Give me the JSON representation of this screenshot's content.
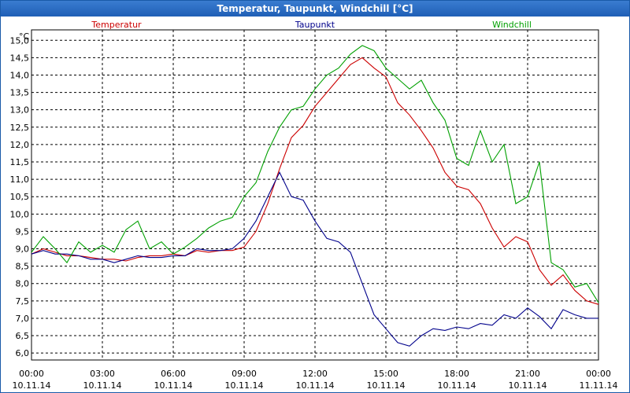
{
  "window": {
    "title": "Temperatur, Taupunkt, Windchill [°C]"
  },
  "chart_data": {
    "type": "line",
    "title": "Temperatur, Taupunkt, Windchill [°C]",
    "ylabel": "°C",
    "ylim": [
      5.8,
      15.3
    ],
    "xlim": [
      0,
      24
    ],
    "y_ticks": [
      "15,0",
      "14,5",
      "14,0",
      "13,5",
      "13,0",
      "12,5",
      "12,0",
      "11,5",
      "11,0",
      "10,5",
      "10,0",
      "9,5",
      "9,0",
      "8,5",
      "8,0",
      "7,5",
      "7,0",
      "6,5",
      "6,0"
    ],
    "x_ticks": [
      {
        "time": "00:00",
        "date": "10.11.14"
      },
      {
        "time": "03:00",
        "date": "10.11.14"
      },
      {
        "time": "06:00",
        "date": "10.11.14"
      },
      {
        "time": "09:00",
        "date": "10.11.14"
      },
      {
        "time": "12:00",
        "date": "10.11.14"
      },
      {
        "time": "15:00",
        "date": "10.11.14"
      },
      {
        "time": "18:00",
        "date": "10.11.14"
      },
      {
        "time": "21:00",
        "date": "10.11.14"
      },
      {
        "time": "00:00",
        "date": "11.11.14"
      }
    ],
    "grid": true,
    "legend_position": "top",
    "series": [
      {
        "name": "Temperatur",
        "color": "#cc0000",
        "x": [
          0,
          0.5,
          1,
          1.5,
          2,
          2.5,
          3,
          3.5,
          4,
          4.5,
          5,
          5.5,
          6,
          6.5,
          7,
          7.5,
          8,
          8.5,
          9,
          9.5,
          10,
          10.5,
          11,
          11.5,
          12,
          12.5,
          13,
          13.5,
          14,
          14.5,
          15,
          15.5,
          16,
          16.5,
          17,
          17.5,
          18,
          18.5,
          19,
          19.5,
          20,
          20.5,
          21,
          21.5,
          22,
          22.5,
          23,
          23.5,
          24
        ],
        "values": [
          8.85,
          9.0,
          8.9,
          8.8,
          8.8,
          8.75,
          8.7,
          8.7,
          8.65,
          8.75,
          8.8,
          8.8,
          8.85,
          8.8,
          8.95,
          8.9,
          8.95,
          8.95,
          9.05,
          9.5,
          10.3,
          11.3,
          12.2,
          12.55,
          13.1,
          13.5,
          13.9,
          14.3,
          14.5,
          14.2,
          13.95,
          13.2,
          12.85,
          12.4,
          11.9,
          11.2,
          10.8,
          10.7,
          10.3,
          9.6,
          9.05,
          9.35,
          9.2,
          8.4,
          7.95,
          8.25,
          7.8,
          7.5,
          7.4
        ]
      },
      {
        "name": "Taupunkt",
        "color": "#00008b",
        "x": [
          0,
          0.5,
          1,
          1.5,
          2,
          2.5,
          3,
          3.5,
          4,
          4.5,
          5,
          5.5,
          6,
          6.5,
          7,
          7.5,
          8,
          8.5,
          9,
          9.5,
          10,
          10.5,
          11,
          11.5,
          12,
          12.5,
          13,
          13.5,
          14,
          14.5,
          15,
          15.5,
          16,
          16.5,
          17,
          17.5,
          18,
          18.5,
          19,
          19.5,
          20,
          20.5,
          21,
          21.5,
          22,
          22.5,
          23,
          23.5,
          24
        ],
        "values": [
          8.85,
          8.95,
          8.85,
          8.85,
          8.8,
          8.7,
          8.7,
          8.6,
          8.7,
          8.8,
          8.75,
          8.75,
          8.8,
          8.8,
          9.0,
          8.95,
          8.95,
          9.0,
          9.3,
          9.8,
          10.5,
          11.2,
          10.5,
          10.4,
          9.8,
          9.3,
          9.2,
          8.9,
          8.0,
          7.1,
          6.7,
          6.3,
          6.2,
          6.5,
          6.7,
          6.65,
          6.75,
          6.7,
          6.85,
          6.8,
          7.1,
          7.0,
          7.3,
          7.05,
          6.7,
          7.25,
          7.1,
          7.0,
          7.0
        ]
      },
      {
        "name": "Windchill",
        "color": "#00a000",
        "x": [
          0,
          0.5,
          1,
          1.5,
          2,
          2.5,
          3,
          3.5,
          4,
          4.5,
          5,
          5.5,
          6,
          6.5,
          7,
          7.5,
          8,
          8.5,
          9,
          9.5,
          10,
          10.5,
          11,
          11.5,
          12,
          12.5,
          13,
          13.5,
          14,
          14.5,
          15,
          15.5,
          16,
          16.5,
          17,
          17.5,
          18,
          18.5,
          19,
          19.5,
          20,
          20.5,
          21,
          21.5,
          22,
          22.5,
          23,
          23.5,
          24
        ],
        "values": [
          8.9,
          9.35,
          9.0,
          8.6,
          9.2,
          8.9,
          9.1,
          8.9,
          9.55,
          9.8,
          9.0,
          9.2,
          8.85,
          9.05,
          9.3,
          9.6,
          9.8,
          9.9,
          10.5,
          10.9,
          11.8,
          12.5,
          13.0,
          13.1,
          13.6,
          14.0,
          14.2,
          14.6,
          14.85,
          14.7,
          14.2,
          13.9,
          13.6,
          13.85,
          13.2,
          12.7,
          11.6,
          11.4,
          12.4,
          11.5,
          12.0,
          10.3,
          10.5,
          11.5,
          8.6,
          8.4,
          7.9,
          8.0,
          7.45
        ]
      }
    ]
  }
}
